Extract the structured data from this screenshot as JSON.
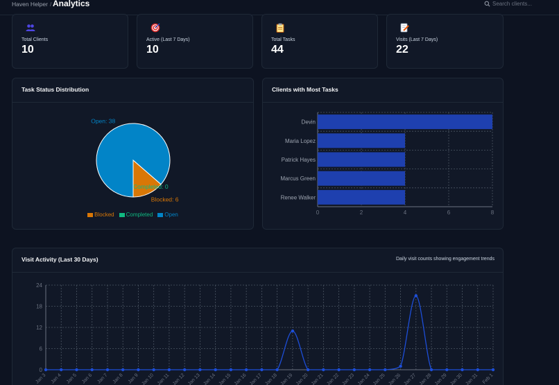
{
  "header": {
    "breadcrumb_root": "Haven Helper",
    "separator": "/",
    "title": "Analytics",
    "search_placeholder": "Search clients..."
  },
  "stats": [
    {
      "label": "Total Clients",
      "value": "10",
      "icon": "users-icon",
      "icon_bg": "#eef2ff",
      "icon_color": "#4f46e5"
    },
    {
      "label": "Active (Last 7 Days)",
      "value": "10",
      "icon": "target-icon",
      "icon_bg": "#dcfce7",
      "icon_color": "#dc2626"
    },
    {
      "label": "Total Tasks",
      "value": "44",
      "icon": "clipboard-icon",
      "icon_bg": "#fef3c7",
      "icon_color": "#b45309"
    },
    {
      "label": "Visits (Last 7 Days)",
      "value": "22",
      "icon": "memo-icon",
      "icon_bg": "#e0f2fe",
      "icon_color": "#ea580c"
    }
  ],
  "task_status": {
    "title": "Task Status Distribution",
    "legend": [
      {
        "name": "Blocked",
        "color": "#d97706"
      },
      {
        "name": "Completed",
        "color": "#10b981"
      },
      {
        "name": "Open",
        "color": "#0284c7"
      }
    ]
  },
  "clients_tasks": {
    "title": "Clients with Most Tasks"
  },
  "visit_activity": {
    "title": "Visit Activity (Last 30 Days)",
    "subtitle": "Daily visit counts showing engagement trends"
  },
  "chart_data": [
    {
      "type": "pie",
      "title": "Task Status Distribution",
      "labels": [
        "Open",
        "Blocked",
        "Completed"
      ],
      "values": [
        38,
        6,
        0
      ],
      "colors": [
        "#0284c7",
        "#d97706",
        "#10b981"
      ]
    },
    {
      "type": "bar",
      "orientation": "horizontal",
      "title": "Clients with Most Tasks",
      "categories": [
        "Devin",
        "Maria Lopez",
        "Patrick Hayes",
        "Marcus Green",
        "Renee Walker"
      ],
      "values": [
        8,
        4,
        4,
        4,
        4
      ],
      "xlim": [
        0,
        8
      ],
      "xticks": [
        0,
        2,
        4,
        6,
        8
      ],
      "color": "#1e40af"
    },
    {
      "type": "line",
      "title": "Visit Activity (Last 30 Days)",
      "x": [
        "Jan 3",
        "Jan 4",
        "Jan 5",
        "Jan 6",
        "Jan 7",
        "Jan 8",
        "Jan 9",
        "Jan 10",
        "Jan 11",
        "Jan 12",
        "Jan 13",
        "Jan 14",
        "Jan 15",
        "Jan 16",
        "Jan 17",
        "Jan 18",
        "Jan 19",
        "Jan 20",
        "Jan 21",
        "Jan 22",
        "Jan 23",
        "Jan 24",
        "Jan 25",
        "Jan 26",
        "Jan 27",
        "Jan 28",
        "Jan 29",
        "Jan 30",
        "Jan 31",
        "Feb 1"
      ],
      "values": [
        0,
        0,
        0,
        0,
        0,
        0,
        0,
        0,
        0,
        0,
        0,
        0,
        0,
        0,
        0,
        0,
        11,
        0,
        0,
        0,
        0,
        0,
        0,
        1,
        21,
        0,
        0,
        0,
        0,
        0
      ],
      "ylim": [
        0,
        24
      ],
      "yticks": [
        0,
        6,
        12,
        18,
        24
      ],
      "color": "#1d4ed8"
    }
  ]
}
